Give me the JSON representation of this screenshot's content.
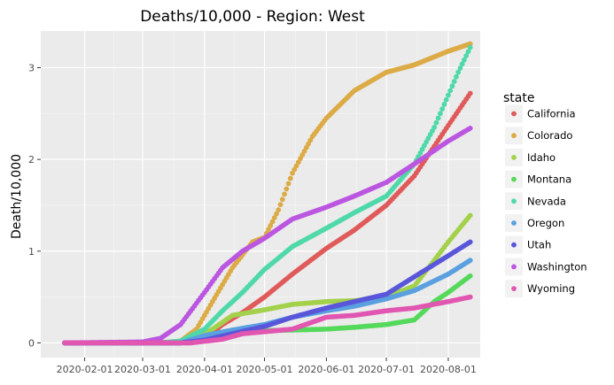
{
  "chart_data": {
    "type": "scatter",
    "title": "Deaths/10,000 - Region: West",
    "xlabel": "",
    "ylabel": "Death/10,000",
    "x_ticks": [
      "2020-02-01",
      "2020-03-01",
      "2020-04-01",
      "2020-05-01",
      "2020-06-01",
      "2020-07-01",
      "2020-08-01"
    ],
    "y_ticks": [
      0,
      1,
      2,
      3
    ],
    "xlim": [
      "2020-01-10",
      "2020-08-17"
    ],
    "ylim": [
      -0.16,
      3.4
    ],
    "grid": true,
    "legend_title": "state",
    "legend_position": "right",
    "series": [
      {
        "name": "California",
        "color": "#e05a5a",
        "points": [
          [
            "2020-01-22",
            0
          ],
          [
            "2020-03-01",
            0
          ],
          [
            "2020-03-20",
            0.01
          ],
          [
            "2020-04-01",
            0.05
          ],
          [
            "2020-04-10",
            0.2
          ],
          [
            "2020-04-20",
            0.33
          ],
          [
            "2020-05-01",
            0.5
          ],
          [
            "2020-05-15",
            0.75
          ],
          [
            "2020-06-01",
            1.03
          ],
          [
            "2020-06-15",
            1.23
          ],
          [
            "2020-07-01",
            1.5
          ],
          [
            "2020-07-15",
            1.82
          ],
          [
            "2020-08-01",
            2.37
          ],
          [
            "2020-08-12",
            2.72
          ]
        ]
      },
      {
        "name": "Colorado",
        "color": "#dcab46",
        "points": [
          [
            "2020-01-22",
            0
          ],
          [
            "2020-03-10",
            0
          ],
          [
            "2020-03-20",
            0.02
          ],
          [
            "2020-03-28",
            0.15
          ],
          [
            "2020-04-05",
            0.45
          ],
          [
            "2020-04-15",
            0.82
          ],
          [
            "2020-04-25",
            1.1
          ],
          [
            "2020-05-01",
            1.15
          ],
          [
            "2020-05-08",
            1.45
          ],
          [
            "2020-05-15",
            1.85
          ],
          [
            "2020-05-25",
            2.25
          ],
          [
            "2020-06-01",
            2.45
          ],
          [
            "2020-06-15",
            2.75
          ],
          [
            "2020-07-01",
            2.95
          ],
          [
            "2020-07-15",
            3.03
          ],
          [
            "2020-08-01",
            3.18
          ],
          [
            "2020-08-12",
            3.26
          ]
        ]
      },
      {
        "name": "Idaho",
        "color": "#a3d14b",
        "points": [
          [
            "2020-01-22",
            0
          ],
          [
            "2020-03-15",
            0
          ],
          [
            "2020-03-25",
            0.01
          ],
          [
            "2020-04-05",
            0.15
          ],
          [
            "2020-04-15",
            0.3
          ],
          [
            "2020-05-01",
            0.36
          ],
          [
            "2020-05-15",
            0.42
          ],
          [
            "2020-06-01",
            0.45
          ],
          [
            "2020-06-15",
            0.46
          ],
          [
            "2020-07-01",
            0.5
          ],
          [
            "2020-07-15",
            0.62
          ],
          [
            "2020-07-25",
            0.9
          ],
          [
            "2020-08-01",
            1.1
          ],
          [
            "2020-08-12",
            1.39
          ]
        ]
      },
      {
        "name": "Montana",
        "color": "#55d95a",
        "points": [
          [
            "2020-01-22",
            0
          ],
          [
            "2020-03-20",
            0
          ],
          [
            "2020-03-28",
            0.01
          ],
          [
            "2020-04-10",
            0.08
          ],
          [
            "2020-04-25",
            0.13
          ],
          [
            "2020-05-15",
            0.14
          ],
          [
            "2020-06-01",
            0.15
          ],
          [
            "2020-06-15",
            0.17
          ],
          [
            "2020-07-01",
            0.2
          ],
          [
            "2020-07-15",
            0.25
          ],
          [
            "2020-07-25",
            0.45
          ],
          [
            "2020-08-01",
            0.55
          ],
          [
            "2020-08-12",
            0.73
          ]
        ]
      },
      {
        "name": "Nevada",
        "color": "#4fd9a8",
        "points": [
          [
            "2020-01-22",
            0
          ],
          [
            "2020-03-10",
            0
          ],
          [
            "2020-03-20",
            0.02
          ],
          [
            "2020-04-01",
            0.15
          ],
          [
            "2020-04-10",
            0.35
          ],
          [
            "2020-04-20",
            0.55
          ],
          [
            "2020-05-01",
            0.8
          ],
          [
            "2020-05-15",
            1.05
          ],
          [
            "2020-06-01",
            1.25
          ],
          [
            "2020-06-15",
            1.42
          ],
          [
            "2020-07-01",
            1.6
          ],
          [
            "2020-07-15",
            1.95
          ],
          [
            "2020-07-25",
            2.35
          ],
          [
            "2020-08-01",
            2.7
          ],
          [
            "2020-08-06",
            2.95
          ],
          [
            "2020-08-12",
            3.22
          ]
        ]
      },
      {
        "name": "Oregon",
        "color": "#5aa0e0",
        "points": [
          [
            "2020-01-22",
            0
          ],
          [
            "2020-03-20",
            0
          ],
          [
            "2020-04-01",
            0.08
          ],
          [
            "2020-04-15",
            0.14
          ],
          [
            "2020-05-01",
            0.2
          ],
          [
            "2020-05-15",
            0.28
          ],
          [
            "2020-06-01",
            0.35
          ],
          [
            "2020-06-15",
            0.4
          ],
          [
            "2020-07-01",
            0.48
          ],
          [
            "2020-07-15",
            0.57
          ],
          [
            "2020-08-01",
            0.75
          ],
          [
            "2020-08-12",
            0.9
          ]
        ]
      },
      {
        "name": "Utah",
        "color": "#5a56da",
        "points": [
          [
            "2020-01-22",
            0
          ],
          [
            "2020-03-20",
            0
          ],
          [
            "2020-04-01",
            0.03
          ],
          [
            "2020-04-15",
            0.1
          ],
          [
            "2020-05-01",
            0.18
          ],
          [
            "2020-05-15",
            0.28
          ],
          [
            "2020-06-01",
            0.38
          ],
          [
            "2020-06-15",
            0.45
          ],
          [
            "2020-07-01",
            0.53
          ],
          [
            "2020-07-15",
            0.72
          ],
          [
            "2020-08-01",
            0.95
          ],
          [
            "2020-08-12",
            1.1
          ]
        ]
      },
      {
        "name": "Washington",
        "color": "#bb56e0",
        "points": [
          [
            "2020-01-22",
            0
          ],
          [
            "2020-03-01",
            0.01
          ],
          [
            "2020-03-10",
            0.05
          ],
          [
            "2020-03-20",
            0.2
          ],
          [
            "2020-04-01",
            0.55
          ],
          [
            "2020-04-10",
            0.82
          ],
          [
            "2020-04-20",
            1.0
          ],
          [
            "2020-05-01",
            1.14
          ],
          [
            "2020-05-15",
            1.35
          ],
          [
            "2020-06-01",
            1.48
          ],
          [
            "2020-06-15",
            1.6
          ],
          [
            "2020-07-01",
            1.75
          ],
          [
            "2020-07-15",
            1.95
          ],
          [
            "2020-08-01",
            2.2
          ],
          [
            "2020-08-12",
            2.34
          ]
        ]
      },
      {
        "name": "Wyoming",
        "color": "#e056b0",
        "points": [
          [
            "2020-01-22",
            0
          ],
          [
            "2020-03-25",
            0
          ],
          [
            "2020-04-10",
            0.04
          ],
          [
            "2020-04-20",
            0.1
          ],
          [
            "2020-05-15",
            0.15
          ],
          [
            "2020-06-01",
            0.28
          ],
          [
            "2020-06-15",
            0.3
          ],
          [
            "2020-07-01",
            0.35
          ],
          [
            "2020-07-15",
            0.38
          ],
          [
            "2020-08-01",
            0.45
          ],
          [
            "2020-08-12",
            0.5
          ]
        ]
      }
    ]
  }
}
